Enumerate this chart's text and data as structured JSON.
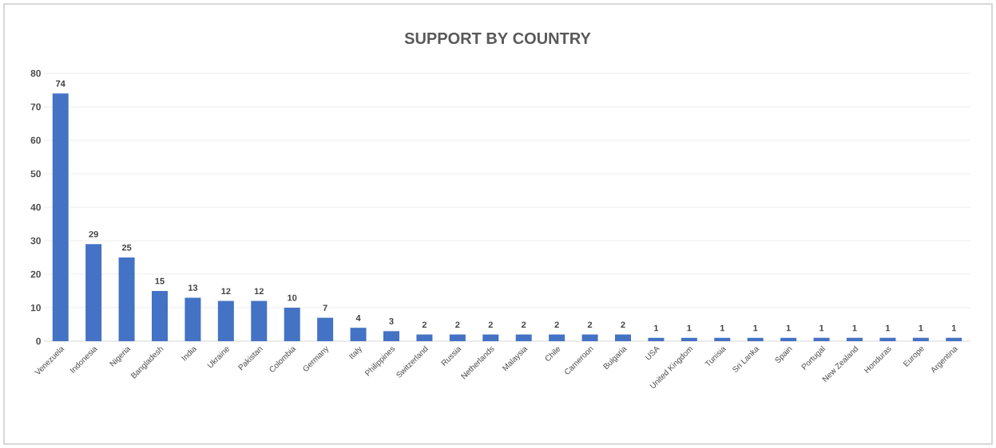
{
  "chart_data": {
    "type": "bar",
    "title": "SUPPORT BY COUNTRY",
    "categories": [
      "Venezuela",
      "Indonesia",
      "Nigeria",
      "Bangladesh",
      "India",
      "Ukraine",
      "Pakistan",
      "Colombia",
      "Germany",
      "Italy",
      "Philippines",
      "Switzerland",
      "Russia",
      "Netherlands",
      "Malaysia",
      "Chile",
      "Cameroon",
      "Bulgaria",
      "USA",
      "United Kingdom",
      "Tunisia",
      "Sri Lanka",
      "Spain",
      "Portugal",
      "New Zealand",
      "Honduras",
      "Europe",
      "Argentina"
    ],
    "values": [
      74,
      29,
      25,
      15,
      13,
      12,
      12,
      10,
      7,
      4,
      3,
      2,
      2,
      2,
      2,
      2,
      2,
      2,
      1,
      1,
      1,
      1,
      1,
      1,
      1,
      1,
      1,
      1
    ],
    "color": "#4472c4",
    "ylim": [
      0,
      80
    ],
    "yticks": [
      0,
      10,
      20,
      30,
      40,
      50,
      60,
      70,
      80
    ],
    "grid": "y",
    "data_labels": true
  }
}
